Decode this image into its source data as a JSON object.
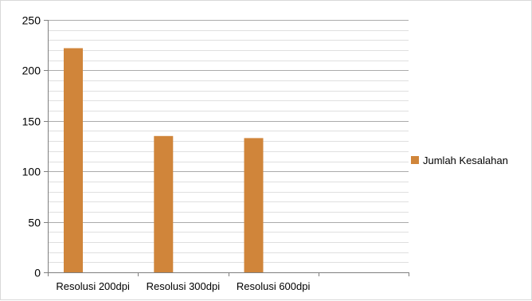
{
  "chart_data": {
    "type": "bar",
    "categories": [
      "Resolusi 200dpi",
      "Resolusi 300dpi",
      "Resolusi 600dpi",
      ""
    ],
    "series": [
      {
        "name": "Jumlah Kesalahan",
        "values": [
          222,
          135,
          133,
          null
        ]
      }
    ],
    "ylim": [
      0,
      250
    ],
    "yticks": [
      0,
      50,
      100,
      150,
      200,
      250
    ],
    "grid": true,
    "legend": "right",
    "colors": {
      "bar": "#d0853a",
      "grid": "#a6a6a6",
      "axis": "#7f7f7f"
    }
  }
}
